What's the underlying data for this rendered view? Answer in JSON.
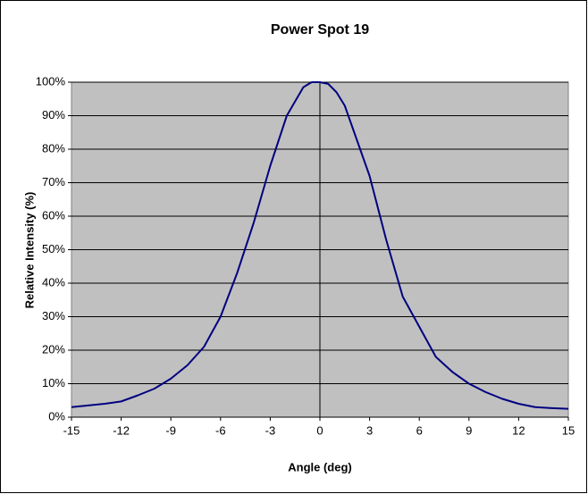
{
  "chart_data": {
    "type": "line",
    "title": "Power Spot 19",
    "x_label": "Angle (deg)",
    "y_label": "Relative Intensity (%)",
    "x": [
      -15,
      -14,
      -13,
      -12,
      -11,
      -10,
      -9,
      -8,
      -7,
      -6,
      -5,
      -4,
      -3,
      -2,
      -1,
      -0.5,
      0,
      0.5,
      1,
      1.5,
      2,
      3,
      4,
      5,
      6,
      7,
      8,
      9,
      10,
      11,
      12,
      13,
      14,
      15
    ],
    "series": [
      {
        "name": "Power Spot 19",
        "color": "#000080",
        "values": [
          3,
          3.5,
          4,
          4.7,
          6.5,
          8.5,
          11.5,
          15.5,
          21,
          30,
          43,
          58,
          75,
          90,
          98.5,
          100,
          100,
          99.5,
          97,
          93,
          86,
          72,
          53,
          36,
          27,
          18,
          13.5,
          10,
          7.5,
          5.5,
          4,
          3,
          2.7,
          2.5
        ]
      }
    ],
    "xlim": [
      -15,
      15
    ],
    "xticks": [
      -15,
      -12,
      -9,
      -6,
      -3,
      0,
      3,
      6,
      9,
      12,
      15
    ],
    "ylim": [
      0,
      100
    ],
    "yticks": [
      {
        "value": 0,
        "label": "0%"
      },
      {
        "value": 10,
        "label": "10%"
      },
      {
        "value": 20,
        "label": "20%"
      },
      {
        "value": 30,
        "label": "30%"
      },
      {
        "value": 40,
        "label": "40%"
      },
      {
        "value": 50,
        "label": "50%"
      },
      {
        "value": 60,
        "label": "60%"
      },
      {
        "value": 70,
        "label": "70%"
      },
      {
        "value": 80,
        "label": "80%"
      },
      {
        "value": 90,
        "label": "90%"
      },
      {
        "value": 100,
        "label": "100%"
      }
    ],
    "grid": true,
    "plot_background": "#c0c0c0"
  }
}
